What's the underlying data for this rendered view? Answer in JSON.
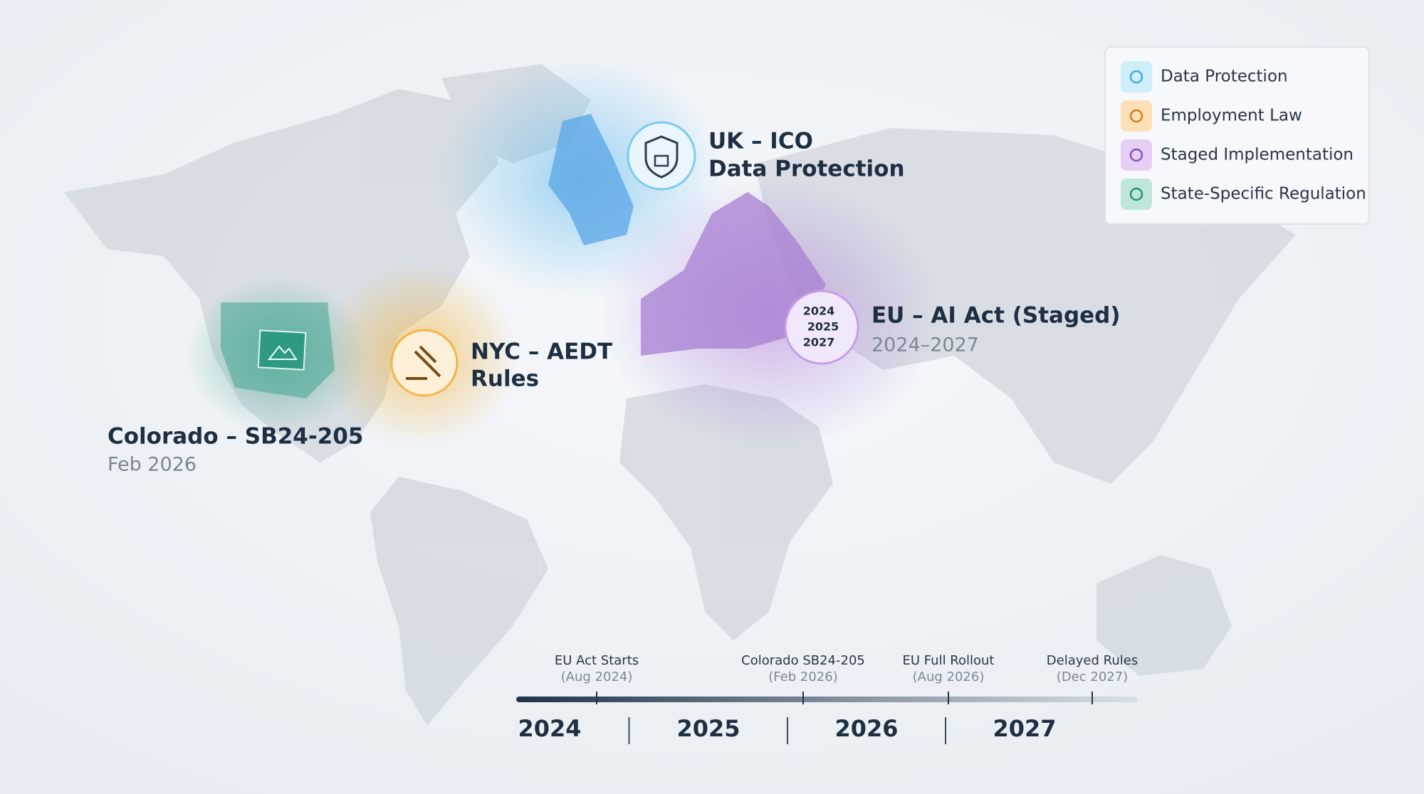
{
  "legend": {
    "items": [
      "Data Protection",
      "Employment Law",
      "Staged Implementation",
      "State-Specific Regulation"
    ]
  },
  "regions": {
    "uk": {
      "title": "UK – ICO",
      "subtitle": "Data Protection"
    },
    "eu": {
      "title": "EU – AI Act (Staged)",
      "date": "2024–2027",
      "icon_years": [
        "2024",
        "2025",
        "2027"
      ]
    },
    "nyc": {
      "title": "NYC – AEDT",
      "subtitle": "Rules"
    },
    "colorado": {
      "title": "Colorado – SB24-205",
      "date": "Feb 2026"
    }
  },
  "timeline": {
    "events": [
      {
        "label": "EU Act Starts",
        "date": "(Aug 2024)"
      },
      {
        "label": "Colorado SB24-205",
        "date": "(Feb 2026)"
      },
      {
        "label": "EU Full Rollout",
        "date": "(Aug 2026)"
      },
      {
        "label": "Delayed Rules",
        "date": "(Dec 2027)"
      }
    ],
    "years": [
      "2024",
      "2025",
      "2026",
      "2027"
    ]
  }
}
